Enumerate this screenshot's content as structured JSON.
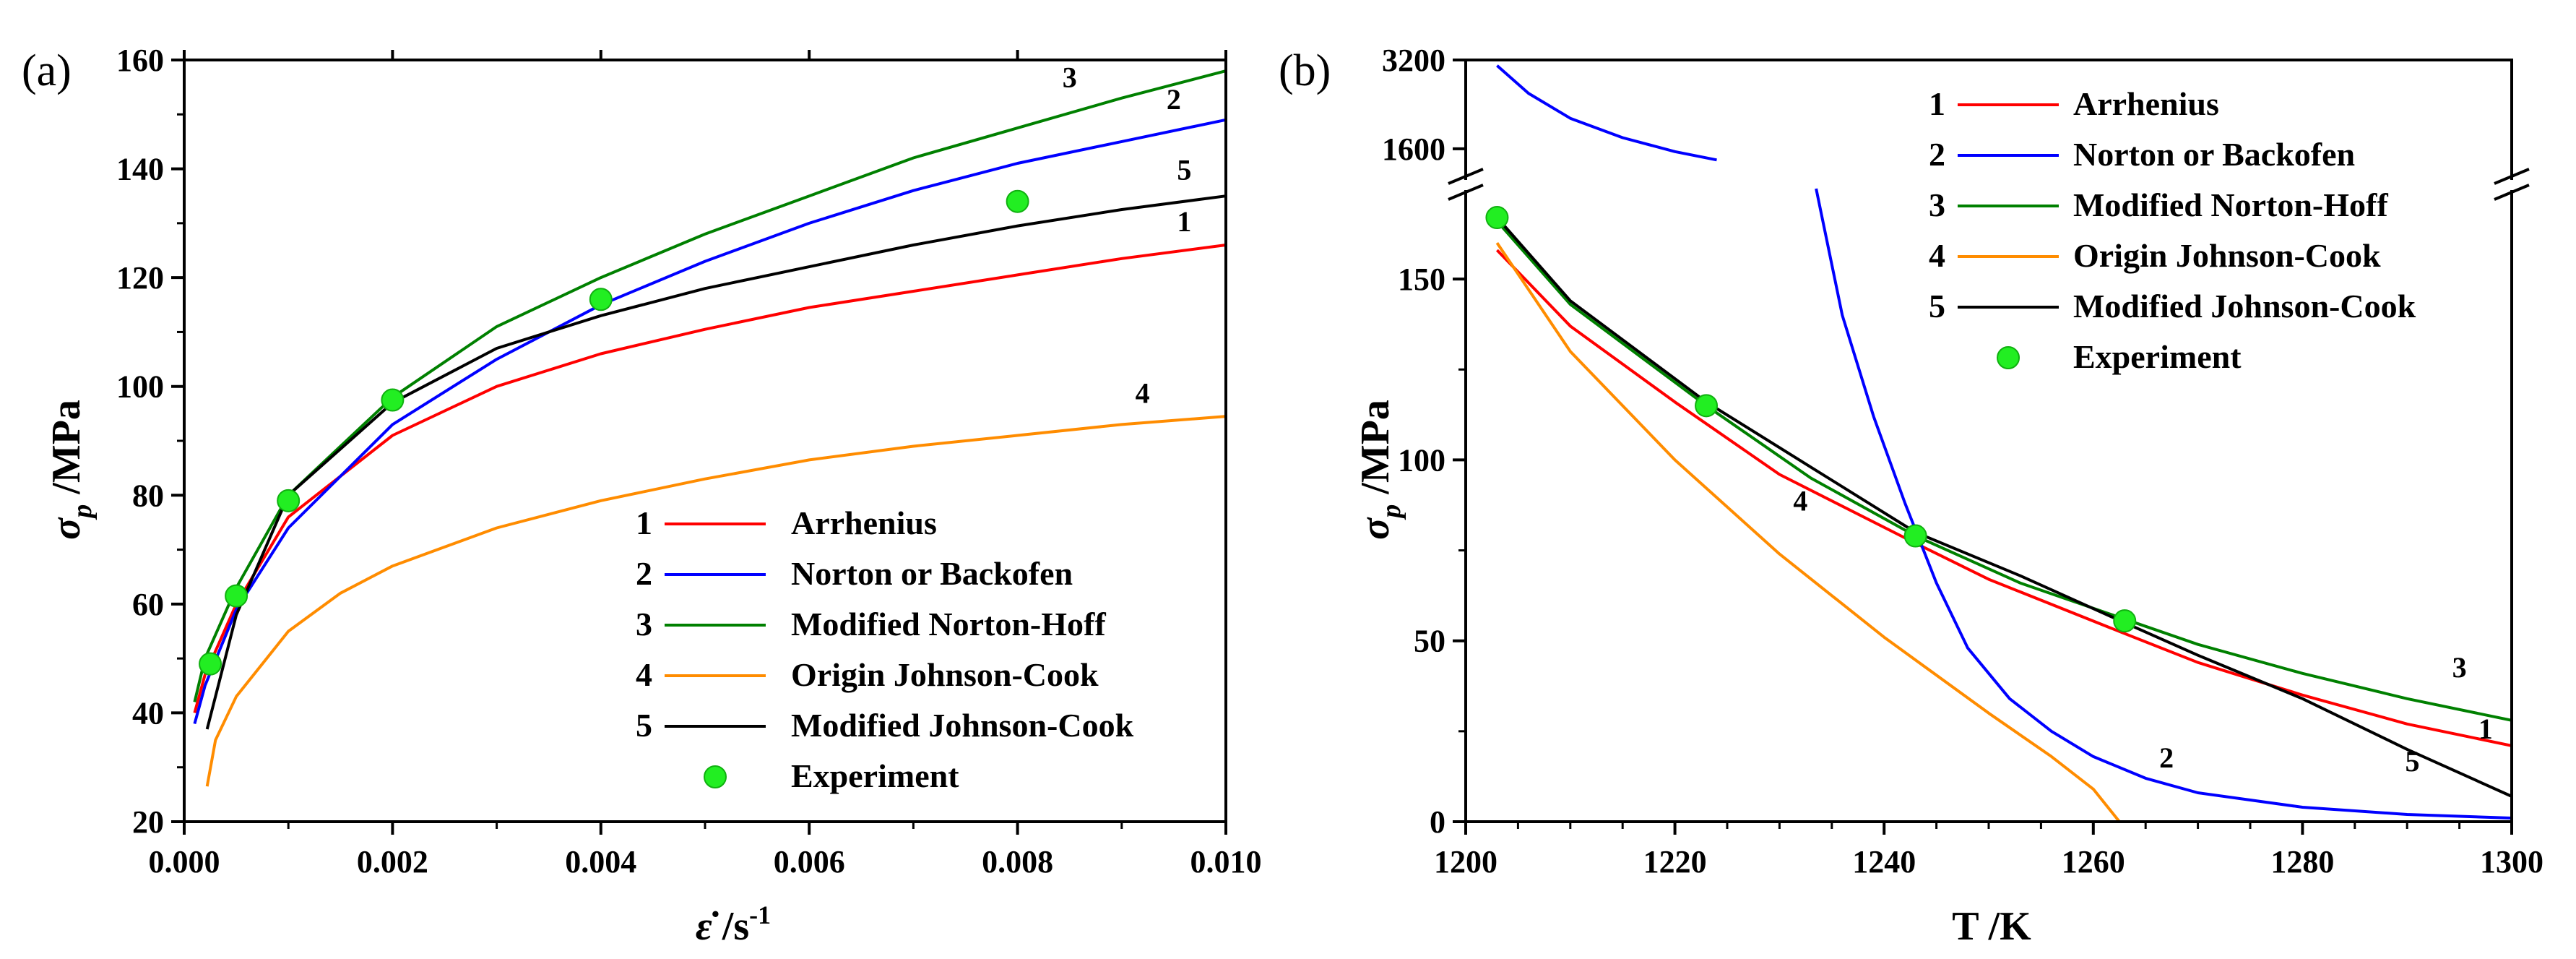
{
  "colors": {
    "arrhenius": "#ff0000",
    "norton": "#0000ff",
    "norton_hoff": "#008000",
    "johnson_cook": "#ff8c00",
    "mod_johnson_cook": "#000000",
    "experiment": "#22ee22"
  },
  "chart_data": [
    {
      "type": "line",
      "panel_label": "(a)",
      "xlabel_symbol": "ε̇",
      "xlabel_unit": " /s",
      "xlabel_exp": "-1",
      "ylabel_symbol": "σ",
      "ylabel_sub": "p",
      "ylabel_unit": " /MPa",
      "xlim": [
        0,
        0.01
      ],
      "ylim": [
        20,
        160
      ],
      "xticks": [
        "0.000",
        "0.002",
        "0.004",
        "0.006",
        "0.008",
        "0.010"
      ],
      "yticks": [
        "20",
        "40",
        "60",
        "80",
        "100",
        "120",
        "140",
        "160"
      ],
      "legend_position": "bottom-right",
      "legend": [
        {
          "num": "1",
          "label": "Arrhenius",
          "color_key": "arrhenius",
          "kind": "line"
        },
        {
          "num": "2",
          "label": "Norton or Backofen",
          "color_key": "norton",
          "kind": "line"
        },
        {
          "num": "3",
          "label": "Modified Norton-Hoff",
          "color_key": "norton_hoff",
          "kind": "line"
        },
        {
          "num": "4",
          "label": "Origin Johnson-Cook",
          "color_key": "johnson_cook",
          "kind": "line"
        },
        {
          "num": "5",
          "label": "Modified Johnson-Cook",
          "color_key": "mod_johnson_cook",
          "kind": "line"
        },
        {
          "num": "",
          "label": "Experiment",
          "color_key": "experiment",
          "kind": "marker"
        }
      ],
      "series": [
        {
          "name": "Arrhenius",
          "num": "1",
          "color_key": "arrhenius",
          "points": [
            [
              0.0001,
              40
            ],
            [
              0.0002,
              47
            ],
            [
              0.0005,
              60
            ],
            [
              0.001,
              76
            ],
            [
              0.002,
              91
            ],
            [
              0.003,
              100
            ],
            [
              0.004,
              106
            ],
            [
              0.005,
              110.5
            ],
            [
              0.006,
              114.5
            ],
            [
              0.007,
              117.5
            ],
            [
              0.008,
              120.5
            ],
            [
              0.009,
              123.5
            ],
            [
              0.01,
              126
            ]
          ],
          "label_at": [
            0.0096,
            128.5
          ]
        },
        {
          "name": "Norton or Backofen",
          "num": "2",
          "color_key": "norton",
          "points": [
            [
              0.0001,
              38
            ],
            [
              0.0002,
              45
            ],
            [
              0.0005,
              59
            ],
            [
              0.001,
              74
            ],
            [
              0.002,
              93
            ],
            [
              0.003,
              105
            ],
            [
              0.004,
              115
            ],
            [
              0.005,
              123
            ],
            [
              0.006,
              130
            ],
            [
              0.007,
              136
            ],
            [
              0.008,
              141
            ],
            [
              0.009,
              145
            ],
            [
              0.01,
              149
            ]
          ],
          "label_at": [
            0.0095,
            151
          ]
        },
        {
          "name": "Modified Norton-Hoff",
          "num": "3",
          "color_key": "norton_hoff",
          "points": [
            [
              0.0001,
              42
            ],
            [
              0.0002,
              50
            ],
            [
              0.0005,
              63
            ],
            [
              0.001,
              80
            ],
            [
              0.002,
              98
            ],
            [
              0.003,
              111
            ],
            [
              0.004,
              120
            ],
            [
              0.005,
              128
            ],
            [
              0.006,
              135
            ],
            [
              0.007,
              142
            ],
            [
              0.008,
              147.5
            ],
            [
              0.009,
              153
            ],
            [
              0.01,
              158
            ]
          ],
          "label_at": [
            0.0085,
            155
          ]
        },
        {
          "name": "Origin Johnson-Cook",
          "num": "4",
          "color_key": "johnson_cook",
          "points": [
            [
              0.00022,
              26.5
            ],
            [
              0.0003,
              35
            ],
            [
              0.0005,
              43
            ],
            [
              0.001,
              55
            ],
            [
              0.0015,
              62
            ],
            [
              0.002,
              67
            ],
            [
              0.003,
              74
            ],
            [
              0.004,
              79
            ],
            [
              0.005,
              83
            ],
            [
              0.006,
              86.5
            ],
            [
              0.007,
              89
            ],
            [
              0.008,
              91
            ],
            [
              0.009,
              93
            ],
            [
              0.01,
              94.5
            ]
          ],
          "label_at": [
            0.0092,
            97
          ]
        },
        {
          "name": "Modified Johnson-Cook",
          "num": "5",
          "color_key": "mod_johnson_cook",
          "points": [
            [
              0.00022,
              37
            ],
            [
              0.0003,
              43
            ],
            [
              0.0005,
              58
            ],
            [
              0.001,
              80
            ],
            [
              0.002,
              97
            ],
            [
              0.003,
              107
            ],
            [
              0.004,
              113
            ],
            [
              0.005,
              118
            ],
            [
              0.006,
              122
            ],
            [
              0.007,
              126
            ],
            [
              0.008,
              129.5
            ],
            [
              0.009,
              132.5
            ],
            [
              0.01,
              135
            ]
          ],
          "label_at": [
            0.0096,
            138
          ]
        }
      ],
      "experiment": [
        [
          0.00025,
          49
        ],
        [
          0.0005,
          61.5
        ],
        [
          0.001,
          79
        ],
        [
          0.002,
          97.5
        ],
        [
          0.004,
          116
        ],
        [
          0.008,
          134
        ]
      ]
    },
    {
      "type": "line",
      "panel_label": "(b)",
      "xlabel": "T /K",
      "ylabel_symbol": "σ",
      "ylabel_sub": "p",
      "ylabel_unit": " /MPa",
      "xlim": [
        1200,
        1300
      ],
      "ylim_lower": [
        0,
        175
      ],
      "ylim_upper": [
        1000,
        3200
      ],
      "xticks": [
        "1200",
        "1220",
        "1240",
        "1260",
        "1280",
        "1300"
      ],
      "yticks_lower": [
        "0",
        "50",
        "100",
        "150"
      ],
      "yticks_upper": [
        "1600",
        "3200"
      ],
      "axis_break": "between 175 and 1000 MPa",
      "legend_position": "top-center",
      "legend": [
        {
          "num": "1",
          "label": "Arrhenius",
          "color_key": "arrhenius",
          "kind": "line"
        },
        {
          "num": "2",
          "label": "Norton or Backofen",
          "color_key": "norton",
          "kind": "line"
        },
        {
          "num": "3",
          "label": "Modified Norton-Hoff",
          "color_key": "norton_hoff",
          "kind": "line"
        },
        {
          "num": "4",
          "label": "Origin Johnson-Cook",
          "color_key": "johnson_cook",
          "kind": "line"
        },
        {
          "num": "5",
          "label": "Modified Johnson-Cook",
          "color_key": "mod_johnson_cook",
          "kind": "line"
        },
        {
          "num": "",
          "label": "Experiment",
          "color_key": "experiment",
          "kind": "marker"
        }
      ],
      "series": [
        {
          "name": "Arrhenius",
          "num": "1",
          "color_key": "arrhenius",
          "points": [
            [
              1203,
              158
            ],
            [
              1210,
              137
            ],
            [
              1220,
              116
            ],
            [
              1230,
              96
            ],
            [
              1243,
              77
            ],
            [
              1250,
              67
            ],
            [
              1263,
              52
            ],
            [
              1270,
              44
            ],
            [
              1280,
              35
            ],
            [
              1290,
              27
            ],
            [
              1300,
              21
            ]
          ],
          "label_at": [
            1297.5,
            23
          ]
        },
        {
          "name": "Norton or Backofen",
          "num": "2",
          "color_key": "norton",
          "upper": [
            [
              1203,
              3100
            ],
            [
              1206,
              2600
            ],
            [
              1210,
              2150
            ],
            [
              1215,
              1800
            ],
            [
              1220,
              1550
            ],
            [
              1224,
              1400
            ]
          ],
          "points": [
            [
              1233.5,
              175
            ],
            [
              1236,
              140
            ],
            [
              1239,
              112
            ],
            [
              1242,
              88
            ],
            [
              1245,
              66
            ],
            [
              1248,
              48
            ],
            [
              1252,
              34
            ],
            [
              1256,
              25
            ],
            [
              1260,
              18
            ],
            [
              1265,
              12
            ],
            [
              1270,
              8
            ],
            [
              1280,
              4
            ],
            [
              1290,
              2
            ],
            [
              1300,
              1
            ]
          ],
          "label_at": [
            1267,
            15
          ]
        },
        {
          "name": "Modified Norton-Hoff",
          "num": "3",
          "color_key": "norton_hoff",
          "points": [
            [
              1203,
              166
            ],
            [
              1210,
              143
            ],
            [
              1223,
              115
            ],
            [
              1233,
              95
            ],
            [
              1243,
              79
            ],
            [
              1253,
              66
            ],
            [
              1263,
              56
            ],
            [
              1270,
              49
            ],
            [
              1280,
              41
            ],
            [
              1290,
              34
            ],
            [
              1300,
              28
            ]
          ],
          "label_at": [
            1295,
            40
          ]
        },
        {
          "name": "Origin Johnson-Cook",
          "num": "4",
          "color_key": "johnson_cook",
          "points": [
            [
              1203,
              160
            ],
            [
              1210,
              130
            ],
            [
              1220,
              100
            ],
            [
              1230,
              74
            ],
            [
              1240,
              51
            ],
            [
              1250,
              30
            ],
            [
              1256,
              18
            ],
            [
              1260,
              9
            ],
            [
              1262.5,
              0
            ]
          ],
          "label_at": [
            1232,
            86
          ]
        },
        {
          "name": "Modified Johnson-Cook",
          "num": "5",
          "color_key": "mod_johnson_cook",
          "points": [
            [
              1203,
              167
            ],
            [
              1210,
              144
            ],
            [
              1223,
              116
            ],
            [
              1233,
              98
            ],
            [
              1243,
              80
            ],
            [
              1253,
              68
            ],
            [
              1263,
              55
            ],
            [
              1270,
              46
            ],
            [
              1280,
              34
            ],
            [
              1290,
              20
            ],
            [
              1300,
              7
            ]
          ],
          "label_at": [
            1290.5,
            14
          ]
        }
      ],
      "experiment": [
        [
          1203,
          167
        ],
        [
          1223,
          115
        ],
        [
          1243,
          79
        ],
        [
          1263,
          55.5
        ]
      ]
    }
  ]
}
